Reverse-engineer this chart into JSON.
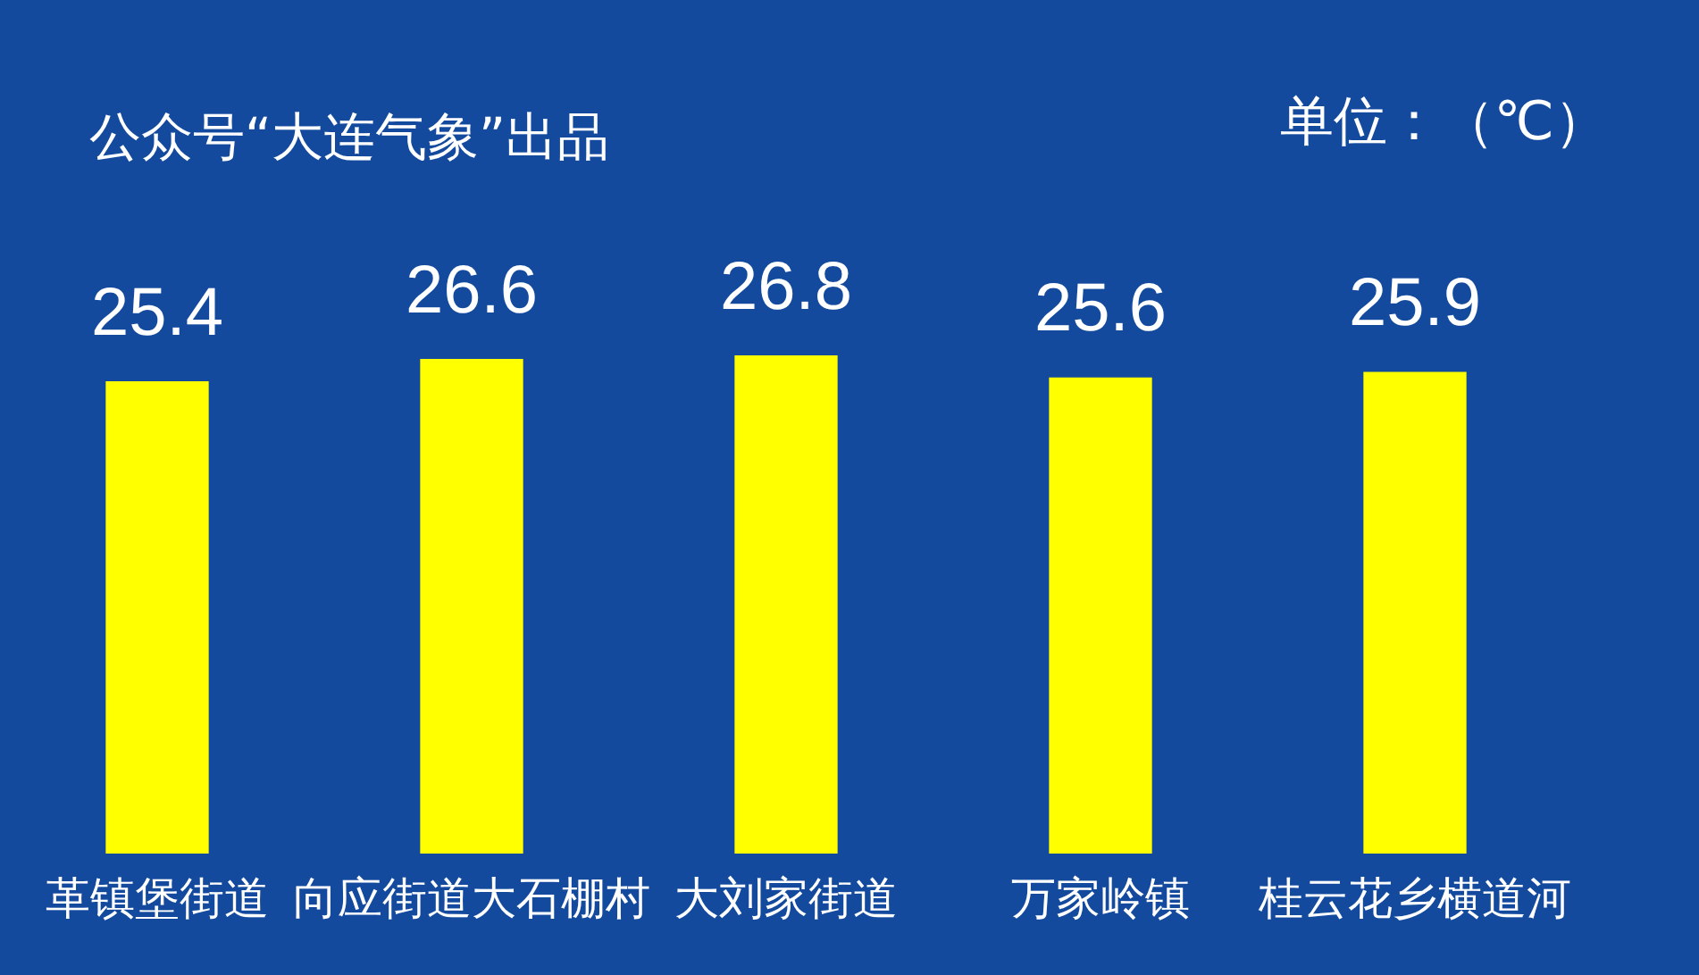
{
  "chart_data": {
    "type": "bar",
    "title": "公众号“大连气象”出品",
    "annotations": [
      "单位：（℃）"
    ],
    "categories": [
      "革镇堡街道",
      "向应街道大石棚村",
      "大刘家街道",
      "万家岭镇",
      "桂云花乡横道河"
    ],
    "values": [
      25.4,
      26.6,
      26.8,
      25.6,
      25.9
    ],
    "color": "#ffff00",
    "data_labels": true
  }
}
